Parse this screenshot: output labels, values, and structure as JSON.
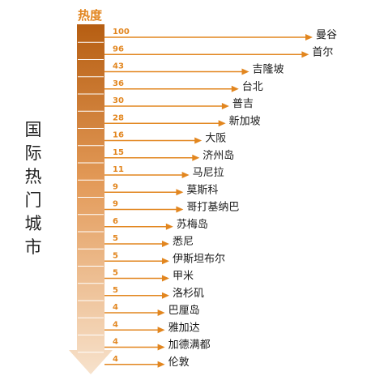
{
  "side_title": [
    "国",
    "际",
    "热",
    "门",
    "城",
    "市"
  ],
  "chart_data": {
    "type": "bar",
    "orientation": "horizontal",
    "title": "热度",
    "xlabel": "",
    "ylabel": "国际热门城市",
    "categories": [
      "曼谷",
      "首尔",
      "吉隆坡",
      "台北",
      "普吉",
      "新加坡",
      "大阪",
      "济州岛",
      "马尼拉",
      "莫斯科",
      "哥打基纳巴",
      "苏梅岛",
      "悉尼",
      "伊斯坦布尔",
      "甲米",
      "洛杉矶",
      "巴厘岛",
      "雅加达",
      "加德满都",
      "伦敦"
    ],
    "values": [
      100,
      96,
      43,
      36,
      30,
      28,
      16,
      15,
      11,
      9,
      9,
      6,
      5,
      5,
      5,
      5,
      4,
      4,
      4,
      4
    ],
    "grid": false,
    "legend": "none"
  },
  "colors": {
    "accent": "#E2861F",
    "arrow_top": "#B65E12",
    "arrow_bottom": "#F7E2CC",
    "label_text": "#1A1A1A",
    "divider": "#FFFFFF"
  }
}
